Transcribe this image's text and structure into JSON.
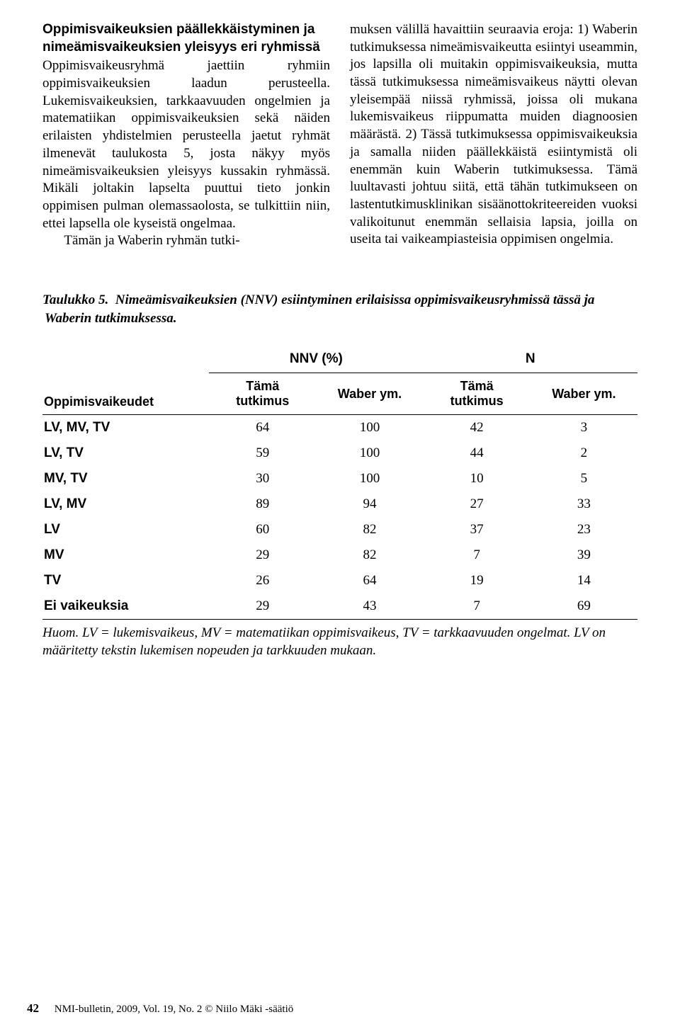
{
  "heading": "Oppimisvaikeuksien päällekkäistyminen ja nimeämisvaikeuksien yleisyys eri ryhmissä",
  "left_body": "Oppimisvaikeusryhmä jaettiin ryhmiin oppimisvaikeuksien laadun perusteella. Lukemisvaikeuksien, tarkkaavuuden ongelmien ja matematiikan oppimisvaikeuksien sekä näiden erilaisten yhdistelmien perusteella jaetut ryhmät ilmenevät taulukosta 5, josta näkyy myös nimeämisvaikeuksien yleisyys kussakin ryhmässä. Mikäli joltakin lapselta puuttui tieto jonkin oppimisen pulman olemassaolosta, se tulkittiin niin, ettei lapsella ole kyseistä ongelmaa.",
  "left_tail": "Tämän ja Waberin ryhmän tutki-",
  "right_body": "muksen välillä havaittiin seuraavia eroja: 1) Waberin tutkimuksessa nimeämisvaikeutta esiintyi useammin, jos lapsilla oli muitakin oppimisvaikeuksia, mutta tässä tutkimuksessa nimeämisvaikeus näytti olevan yleisempää niissä ryhmissä, joissa oli mukana lukemisvaikeus riippumatta muiden diagnoosien määrästä. 2) Tässä tutkimuksessa oppimisvaikeuksia ja samalla niiden päällekkäistä esiintymistä oli enemmän kuin Waberin tutkimuksessa. Tämä luultavasti johtuu siitä, että tähän tutkimukseen on lastentutkimusklinikan sisäänottokriteereiden vuoksi valikoitunut enemmän sellaisia lapsia, joilla on useita tai vaikeampiasteisia oppimisen ongelmia.",
  "table": {
    "caption_label": "Taulukko 5.",
    "caption_text": "Nimeämisvaikeuksien (NNV) esiintyminen erilaisissa oppimisvaikeusryhmissä tässä ja Waberin tutkimuksessa.",
    "group_headers": [
      "NNV (%)",
      "N"
    ],
    "sub_headers_rowlabel": "Oppimisvaikeudet",
    "sub_headers": [
      "Tämä\ntutkimus",
      "Waber ym.",
      "Tämä\ntutkimus",
      "Waber ym."
    ],
    "rows": [
      {
        "label": "LV, MV, TV",
        "cells": [
          "64",
          "100",
          "42",
          "3"
        ]
      },
      {
        "label": "LV, TV",
        "cells": [
          "59",
          "100",
          "44",
          "2"
        ]
      },
      {
        "label": "MV, TV",
        "cells": [
          "30",
          "100",
          "10",
          "5"
        ]
      },
      {
        "label": "LV, MV",
        "cells": [
          "89",
          "94",
          "27",
          "33"
        ]
      },
      {
        "label": "LV",
        "cells": [
          "60",
          "82",
          "37",
          "23"
        ]
      },
      {
        "label": "MV",
        "cells": [
          "29",
          "82",
          "7",
          "39"
        ]
      },
      {
        "label": "TV",
        "cells": [
          "26",
          "64",
          "19",
          "14"
        ]
      },
      {
        "label": "Ei vaikeuksia",
        "cells": [
          "29",
          "43",
          "7",
          "69"
        ]
      }
    ],
    "note": "Huom. LV = lukemisvaikeus, MV = matematiikan oppimisvaikeus, TV = tarkkaavuuden ongelmat. LV on määritetty tekstin lukemisen nopeuden ja tarkkuuden mukaan.",
    "col_widths_pct": [
      28,
      18,
      18,
      18,
      18
    ],
    "rule_color": "#000000"
  },
  "footer": {
    "page_number": "42",
    "citation": "NMI-bulletin, 2009, Vol. 19, No. 2 © Niilo Mäki -säätiö"
  }
}
